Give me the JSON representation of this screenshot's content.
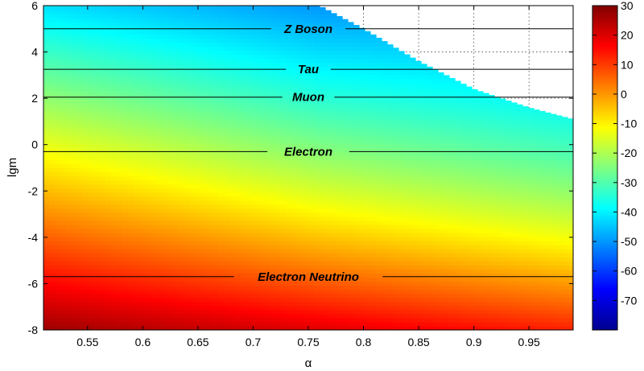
{
  "chart_data": {
    "type": "heatmap",
    "xlabel": "α",
    "ylabel": "lgm",
    "xlim": [
      0.51,
      0.99
    ],
    "ylim": [
      -8,
      6
    ],
    "x_ticks": [
      "0.55",
      "0.6",
      "0.65",
      "0.7",
      "0.75",
      "0.8",
      "0.85",
      "0.9",
      "0.95"
    ],
    "y_ticks": [
      "-8",
      "-6",
      "-4",
      "-2",
      "0",
      "2",
      "4",
      "6"
    ],
    "colorbar": {
      "range": [
        -80,
        30
      ],
      "ticks": [
        "30",
        "20",
        "10",
        "0",
        "-10",
        "-20",
        "-30",
        "-40",
        "-50",
        "-60",
        "-70"
      ],
      "colormap": "jet"
    },
    "grid": "dotted, visible only in unfilled region",
    "valid_region_boundary": [
      {
        "alpha": 0.76,
        "lgm": 6.0
      },
      {
        "alpha": 0.78,
        "lgm": 5.5
      },
      {
        "alpha": 0.8,
        "lgm": 5.0
      },
      {
        "alpha": 0.85,
        "lgm": 3.6
      },
      {
        "alpha": 0.9,
        "lgm": 2.4
      },
      {
        "alpha": 0.95,
        "lgm": 1.6
      },
      {
        "alpha": 0.99,
        "lgm": 1.1
      }
    ],
    "value_samples": [
      {
        "alpha": 0.51,
        "lgm": -8,
        "value": 27
      },
      {
        "alpha": 0.99,
        "lgm": -8,
        "value": 13
      },
      {
        "alpha": 0.51,
        "lgm": -2,
        "value": -3
      },
      {
        "alpha": 0.99,
        "lgm": -2,
        "value": -12
      },
      {
        "alpha": 0.51,
        "lgm": 2,
        "value": -20
      },
      {
        "alpha": 0.99,
        "lgm": 1.2,
        "value": -52
      },
      {
        "alpha": 0.51,
        "lgm": 6,
        "value": -42
      },
      {
        "alpha": 0.76,
        "lgm": 6,
        "value": -50
      }
    ],
    "reference_lines": [
      {
        "label": "Z Boson",
        "lgm": 5.0
      },
      {
        "label": "Tau",
        "lgm": 3.25
      },
      {
        "label": "Muon",
        "lgm": 2.05
      },
      {
        "label": "Electron",
        "lgm": -0.3
      },
      {
        "label": "Electron Neutrino",
        "lgm": -5.7
      }
    ]
  }
}
